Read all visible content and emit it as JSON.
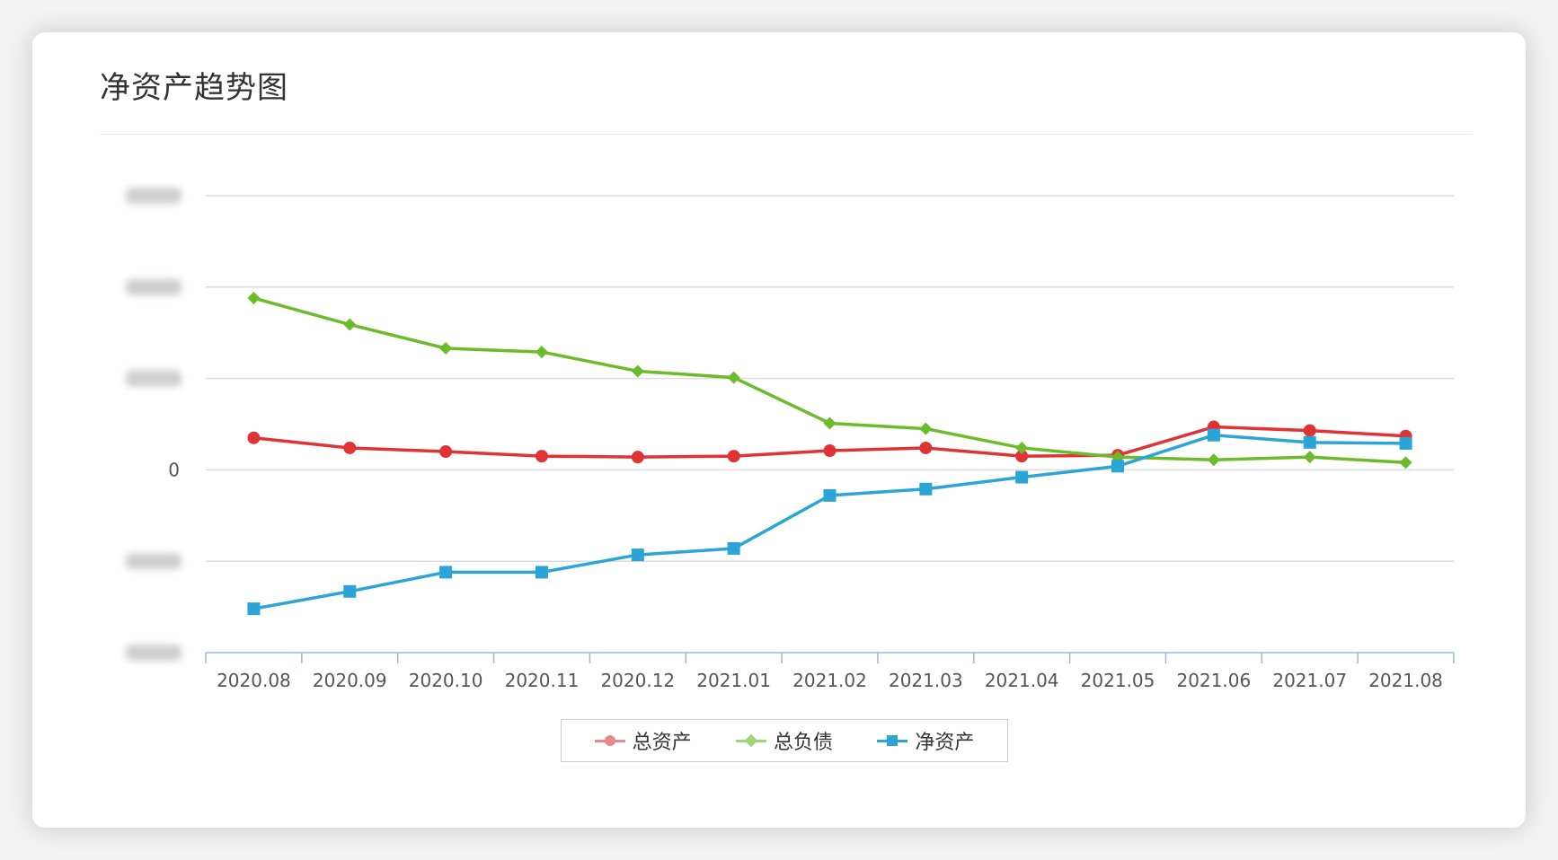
{
  "panel": {
    "title": "净资产趋势图"
  },
  "colors": {
    "total_assets": "#e03333",
    "total_liabilities": "#6cbb2a",
    "net_assets": "#2aa5d6"
  },
  "chart_data": {
    "type": "line",
    "title": "净资产趋势图",
    "xlabel": "",
    "ylabel": "",
    "categories": [
      "2020.08",
      "2020.09",
      "2020.10",
      "2020.11",
      "2020.12",
      "2021.01",
      "2021.02",
      "2021.03",
      "2021.04",
      "2021.05",
      "2021.06",
      "2021.07",
      "2021.08"
    ],
    "y_tick_values": [
      -2,
      -1,
      0,
      1,
      2,
      3
    ],
    "y_tick_labels": [
      "",
      "",
      "0",
      "",
      "",
      ""
    ],
    "ylim": [
      -2,
      3
    ],
    "grid": true,
    "legend_position": "bottom-center",
    "series": [
      {
        "name": "总资产",
        "marker": "circle",
        "values": [
          0.35,
          0.24,
          0.2,
          0.15,
          0.14,
          0.15,
          0.21,
          0.24,
          0.15,
          0.16,
          0.47,
          0.43,
          0.37
        ]
      },
      {
        "name": "总负债",
        "marker": "diamond",
        "values": [
          1.88,
          1.59,
          1.33,
          1.29,
          1.08,
          1.01,
          0.51,
          0.45,
          0.24,
          0.14,
          0.11,
          0.14,
          0.08
        ]
      },
      {
        "name": "净资产",
        "marker": "square",
        "values": [
          -1.52,
          -1.33,
          -1.12,
          -1.12,
          -0.93,
          -0.86,
          -0.28,
          -0.21,
          -0.08,
          0.04,
          0.38,
          0.3,
          0.29
        ]
      }
    ]
  }
}
